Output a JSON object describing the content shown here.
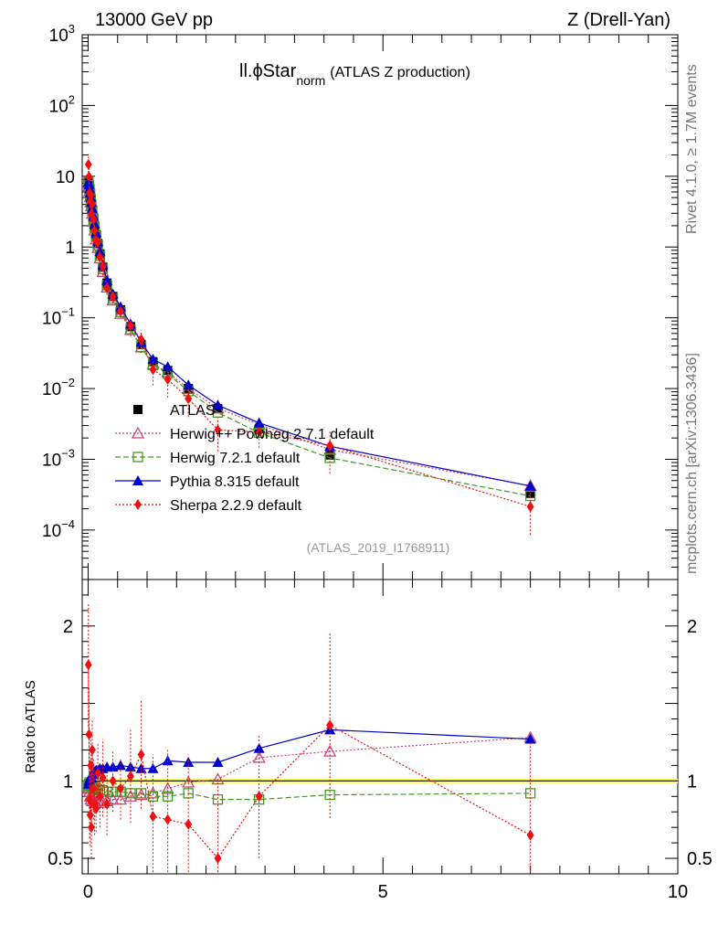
{
  "header": {
    "left": "13000 GeV pp",
    "right": "Z (Drell-Yan)"
  },
  "side_labels": {
    "rivet": "Rivet 4.1.0, ≥ 1.7M events",
    "mcplots": "mcplots.cern.ch [arXiv:1306.3436]"
  },
  "chart_data": [
    {
      "type": "line",
      "title_main": "ll.ϕStar",
      "title_sub": "norm",
      "title_suffix": "(ATLAS Z production)",
      "watermark": "(ATLAS_2019_I1768911)",
      "yscale": "log",
      "xlim": [
        -0.1,
        10
      ],
      "ylim": [
        2e-05,
        1000
      ],
      "y_tick_labels": [
        {
          "value": 1000,
          "base": "10",
          "exp": "3"
        },
        {
          "value": 100,
          "base": "10",
          "exp": "2"
        },
        {
          "value": 10,
          "base": "10",
          "exp": ""
        },
        {
          "value": 1,
          "base": "1",
          "exp": ""
        },
        {
          "value": 0.1,
          "base": "10",
          "exp": "−1"
        },
        {
          "value": 0.01,
          "base": "10",
          "exp": "−2"
        },
        {
          "value": 0.001,
          "base": "10",
          "exp": "−3"
        },
        {
          "value": 0.0001,
          "base": "10",
          "exp": "−4"
        }
      ],
      "legend_position": "bottom-left",
      "x": [
        0.005,
        0.015,
        0.025,
        0.035,
        0.045,
        0.055,
        0.07,
        0.09,
        0.11,
        0.135,
        0.165,
        0.2,
        0.25,
        0.32,
        0.42,
        0.55,
        0.72,
        0.9,
        1.1,
        1.35,
        1.7,
        2.2,
        2.9,
        4.1,
        7.5
      ],
      "series": [
        {
          "name": "ATLAS",
          "key": "data",
          "color": "#000000",
          "marker": "square",
          "values": [
            8.4,
            7.6,
            6.6,
            5.7,
            4.9,
            4.2,
            3.4,
            2.6,
            2.0,
            1.5,
            1.12,
            0.8,
            0.52,
            0.31,
            0.2,
            0.13,
            0.075,
            0.042,
            0.024,
            0.018,
            0.01,
            0.0052,
            0.0027,
            0.00115,
            0.00033
          ]
        },
        {
          "name": "Herwig++ Powheg 2.7.1 default",
          "key": "herwigpp",
          "color": "#cc4477",
          "marker": "triangle-open",
          "ratio": [
            0.95,
            0.96,
            0.93,
            0.9,
            0.88,
            0.9,
            0.87,
            0.88,
            0.86,
            0.86,
            0.87,
            0.87,
            0.86,
            0.87,
            0.88,
            0.88,
            0.9,
            0.91,
            0.92,
            0.95,
            0.99,
            1.01,
            1.15,
            1.19,
            1.28
          ]
        },
        {
          "name": "Herwig 7.2.1 default",
          "key": "herwig7",
          "color": "#449922",
          "marker": "square-open",
          "ratio": [
            0.97,
            0.98,
            0.99,
            0.98,
            0.97,
            0.96,
            0.96,
            0.95,
            0.95,
            0.95,
            0.94,
            0.94,
            0.94,
            0.93,
            0.93,
            0.93,
            0.92,
            0.92,
            0.9,
            0.9,
            0.92,
            0.88,
            0.88,
            0.91,
            0.92
          ]
        },
        {
          "name": "Pythia 8.315 default",
          "key": "pythia",
          "color": "#0000cc",
          "marker": "triangle",
          "ratio": [
            0.98,
            1.0,
            1.01,
            1.02,
            1.03,
            1.02,
            1.04,
            1.05,
            1.06,
            1.07,
            1.07,
            1.08,
            1.08,
            1.09,
            1.09,
            1.1,
            1.09,
            1.08,
            1.08,
            1.13,
            1.12,
            1.12,
            1.21,
            1.33,
            1.27
          ]
        },
        {
          "name": "Sherpa 2.2.9 default",
          "key": "sherpa",
          "color": "#ee1111",
          "marker": "diamond",
          "ratio": [
            1.75,
            1.3,
            0.88,
            0.78,
            1.1,
            0.7,
            1.2,
            0.95,
            0.85,
            0.82,
            1.05,
            0.9,
            1.02,
            0.85,
            1.0,
            0.95,
            1.03,
            1.17,
            0.77,
            0.75,
            0.72,
            0.5,
            0.9,
            1.36,
            0.65
          ],
          "ratio_err": [
            0.4,
            0.3,
            0.25,
            0.2,
            0.2,
            0.2,
            0.2,
            0.2,
            0.2,
            0.15,
            0.2,
            0.2,
            0.25,
            0.2,
            0.2,
            0.2,
            0.3,
            0.35,
            0.4,
            0.45,
            0.45,
            0.5,
            0.4,
            0.6,
            0.6
          ]
        }
      ]
    },
    {
      "type": "line",
      "ylabel": "Ratio to ATLAS",
      "xlim": [
        -0.1,
        10
      ],
      "ylim": [
        0.4,
        2.3
      ],
      "x_ticks": [
        0,
        5,
        10
      ],
      "y_ticks": [
        2,
        1,
        0.5
      ],
      "reference": 1,
      "band": [
        0.985,
        1.015
      ]
    }
  ]
}
